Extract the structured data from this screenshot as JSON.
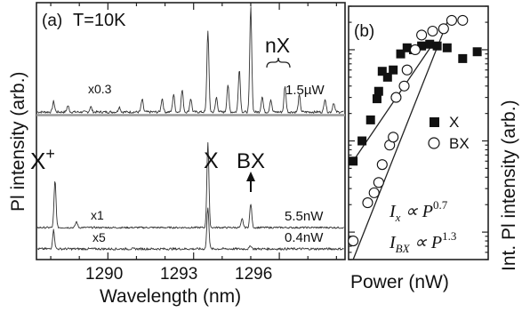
{
  "chart_data": [
    {
      "type": "line",
      "panel_label": "(a)",
      "annotation": "T=10K",
      "xlabel": "Wavelength (nm)",
      "ylabel": "Pl intensity (arb.)",
      "xlim": [
        1287.5,
        1298.3
      ],
      "x_ticks": [
        "1290",
        "1293",
        "1296"
      ],
      "x_tick_values": [
        1290,
        1293,
        1296
      ],
      "peak_labels": {
        "trion": "X",
        "trion_sup": "+",
        "exciton": "X",
        "biexciton": "BX",
        "multiexciton": "nX"
      },
      "series": [
        {
          "power": "1.5µW",
          "multiplier": "x0.3",
          "peaks": [
            {
              "x": 1288.1,
              "h": 0.1
            },
            {
              "x": 1288.6,
              "h": 0.06
            },
            {
              "x": 1289.4,
              "h": 0.05
            },
            {
              "x": 1290.4,
              "h": 0.05
            },
            {
              "x": 1291.2,
              "h": 0.12
            },
            {
              "x": 1291.9,
              "h": 0.13
            },
            {
              "x": 1292.3,
              "h": 0.17
            },
            {
              "x": 1292.6,
              "h": 0.21
            },
            {
              "x": 1292.9,
              "h": 0.13
            },
            {
              "x": 1293.5,
              "h": 0.78
            },
            {
              "x": 1293.8,
              "h": 0.14
            },
            {
              "x": 1294.2,
              "h": 0.26
            },
            {
              "x": 1294.6,
              "h": 0.41
            },
            {
              "x": 1295.0,
              "h": 1.0
            },
            {
              "x": 1295.4,
              "h": 0.15
            },
            {
              "x": 1295.7,
              "h": 0.12
            },
            {
              "x": 1296.2,
              "h": 0.25
            },
            {
              "x": 1296.7,
              "h": 0.16
            },
            {
              "x": 1297.6,
              "h": 0.13
            },
            {
              "x": 1297.9,
              "h": 0.09
            }
          ]
        },
        {
          "power": "5.5nW",
          "multiplier": "x1",
          "peaks": [
            {
              "x": 1288.15,
              "h": 0.55
            },
            {
              "x": 1288.9,
              "h": 0.07
            },
            {
              "x": 1293.5,
              "h": 1.0
            },
            {
              "x": 1294.7,
              "h": 0.1
            },
            {
              "x": 1295.0,
              "h": 0.28
            }
          ]
        },
        {
          "power": "0.4nW",
          "multiplier": "x5",
          "peaks": [
            {
              "x": 1288.1,
              "h": 0.45
            },
            {
              "x": 1293.5,
              "h": 1.0
            },
            {
              "x": 1295.0,
              "h": 0.08
            }
          ]
        }
      ]
    },
    {
      "type": "scatter",
      "panel_label": "(b)",
      "xlabel": "Power (nW)",
      "ylabel": "Int. Pl intensity (arb.)",
      "xscale": "log",
      "yscale": "log",
      "xlim": [
        0.3,
        2000
      ],
      "ylim": [
        0.05,
        30
      ],
      "legend_position": "middle-right",
      "series": [
        {
          "name": "X",
          "marker": "filled-square",
          "points": [
            [
              0.4,
              0.6
            ],
            [
              0.7,
              1.0
            ],
            [
              1.2,
              1.7
            ],
            [
              1.8,
              2.9
            ],
            [
              2.0,
              3.5
            ],
            [
              2.5,
              5.8
            ],
            [
              3.5,
              5.0
            ],
            [
              5.0,
              6.0
            ],
            [
              8.0,
              9.0
            ],
            [
              12.0,
              10.5
            ],
            [
              18.0,
              10.0
            ],
            [
              30.0,
              11.0
            ],
            [
              50.0,
              11.5
            ],
            [
              80.0,
              11.0
            ],
            [
              150.0,
              10.5
            ],
            [
              400.0,
              8.0
            ],
            [
              1000.0,
              9.5
            ]
          ]
        },
        {
          "name": "BX",
          "marker": "open-circle",
          "points": [
            [
              0.4,
              0.08
            ],
            [
              1.0,
              0.21
            ],
            [
              1.5,
              0.27
            ],
            [
              2.0,
              0.35
            ],
            [
              2.5,
              0.55
            ],
            [
              4.0,
              0.9
            ],
            [
              5.0,
              1.1
            ],
            [
              6.0,
              3.0
            ],
            [
              10.0,
              4.0
            ],
            [
              12.0,
              6.0
            ],
            [
              20.0,
              10.0
            ],
            [
              30.0,
              14.5
            ],
            [
              60.0,
              16.0
            ],
            [
              120.0,
              17.0
            ],
            [
              200.0,
              21.0
            ],
            [
              400.0,
              21.0
            ]
          ]
        }
      ],
      "fit_labels": [
        {
          "lhs": "I",
          "sub": "x",
          "rhs": "∝ P",
          "exp": "0.7"
        },
        {
          "lhs": "I",
          "sub": "BX",
          "rhs": "∝ P",
          "exp": "1.3"
        }
      ],
      "fits": [
        {
          "series": "X",
          "exponent": 0.7,
          "from": [
            0.4,
            0.6
          ],
          "to": [
            60.0,
            11.5
          ]
        },
        {
          "series": "BX",
          "exponent": 1.3,
          "from": [
            0.4,
            0.05
          ],
          "to": [
            150.0,
            20.0
          ]
        }
      ]
    }
  ]
}
